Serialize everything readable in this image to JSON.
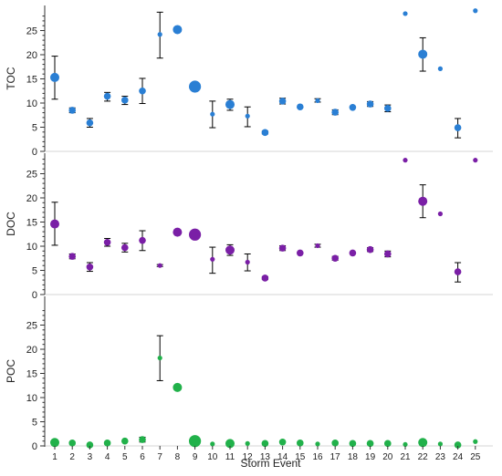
{
  "chart_data": {
    "type": "scatter",
    "xlabel": "Storm Event",
    "x_ticks": [
      1,
      2,
      3,
      4,
      5,
      6,
      7,
      8,
      9,
      10,
      11,
      12,
      13,
      14,
      15,
      16,
      17,
      18,
      19,
      20,
      21,
      22,
      23,
      24,
      25
    ],
    "y_ticks": [
      0,
      5,
      10,
      15,
      20,
      25
    ],
    "colors": {
      "TOC": "#2a7fd4",
      "DOC": "#7a1fa6",
      "POC": "#21b14a",
      "gridline": "#d6d6d6",
      "error_bar": "#000000"
    },
    "panels": [
      {
        "ylabel": "TOC",
        "ylim": [
          0,
          28
        ],
        "points": [
          {
            "x": 1,
            "y": 15.3,
            "err": [
              10.8,
              19.7
            ],
            "size": "medium"
          },
          {
            "x": 2,
            "y": 8.5,
            "err": [
              8.0,
              9.0
            ],
            "size": "small"
          },
          {
            "x": 3,
            "y": 5.9,
            "err": [
              5.0,
              6.8
            ],
            "size": "small"
          },
          {
            "x": 4,
            "y": 11.4,
            "err": [
              10.4,
              12.2
            ],
            "size": "small"
          },
          {
            "x": 5,
            "y": 10.6,
            "err": [
              9.7,
              11.4
            ],
            "size": "small"
          },
          {
            "x": 6,
            "y": 12.5,
            "err": [
              9.9,
              15.1
            ],
            "size": "small"
          },
          {
            "x": 7,
            "y": 24.2,
            "err": [
              19.3,
              28.8
            ],
            "size": "tiny"
          },
          {
            "x": 8,
            "y": 25.2,
            "err": null,
            "size": "medium"
          },
          {
            "x": 9,
            "y": 13.4,
            "err": null,
            "size": "large"
          },
          {
            "x": 10,
            "y": 7.7,
            "err": [
              4.9,
              10.4
            ],
            "size": "tiny"
          },
          {
            "x": 11,
            "y": 9.7,
            "err": [
              8.5,
              10.8
            ],
            "size": "medium"
          },
          {
            "x": 12,
            "y": 7.3,
            "err": [
              5.1,
              9.2
            ],
            "size": "tiny"
          },
          {
            "x": 13,
            "y": 3.9,
            "err": [
              3.6,
              4.2
            ],
            "size": "small"
          },
          {
            "x": 14,
            "y": 10.4,
            "err": [
              9.8,
              11.0
            ],
            "size": "small"
          },
          {
            "x": 15,
            "y": 9.2,
            "err": null,
            "size": "small"
          },
          {
            "x": 16,
            "y": 10.5,
            "err": [
              10.2,
              10.9
            ],
            "size": "tiny"
          },
          {
            "x": 17,
            "y": 8.1,
            "err": [
              7.6,
              8.6
            ],
            "size": "small"
          },
          {
            "x": 18,
            "y": 9.1,
            "err": null,
            "size": "small"
          },
          {
            "x": 19,
            "y": 9.8,
            "err": [
              9.3,
              10.3
            ],
            "size": "small"
          },
          {
            "x": 20,
            "y": 8.9,
            "err": [
              8.2,
              9.6
            ],
            "size": "small"
          },
          {
            "x": 21,
            "y": 28.5,
            "err": null,
            "size": "tiny"
          },
          {
            "x": 22,
            "y": 20.1,
            "err": [
              16.6,
              23.5
            ],
            "size": "medium"
          },
          {
            "x": 23,
            "y": 17.1,
            "err": null,
            "size": "tiny"
          },
          {
            "x": 24,
            "y": 4.9,
            "err": [
              2.8,
              6.8
            ],
            "size": "small"
          },
          {
            "x": 25,
            "y": 29.1,
            "err": null,
            "size": "tiny"
          }
        ]
      },
      {
        "ylabel": "DOC",
        "ylim": [
          0,
          28
        ],
        "points": [
          {
            "x": 1,
            "y": 14.6,
            "err": [
              10.2,
              19.1
            ],
            "size": "medium"
          },
          {
            "x": 2,
            "y": 7.9,
            "err": [
              7.4,
              8.4
            ],
            "size": "small"
          },
          {
            "x": 3,
            "y": 5.7,
            "err": [
              4.8,
              6.6
            ],
            "size": "small"
          },
          {
            "x": 4,
            "y": 10.8,
            "err": [
              10.0,
              11.6
            ],
            "size": "small"
          },
          {
            "x": 5,
            "y": 9.7,
            "err": [
              8.8,
              10.6
            ],
            "size": "small"
          },
          {
            "x": 6,
            "y": 11.2,
            "err": [
              9.1,
              13.2
            ],
            "size": "small"
          },
          {
            "x": 7,
            "y": 6.0,
            "err": [
              5.8,
              6.2
            ],
            "size": "tiny"
          },
          {
            "x": 8,
            "y": 12.9,
            "err": null,
            "size": "medium"
          },
          {
            "x": 9,
            "y": 12.4,
            "err": null,
            "size": "large"
          },
          {
            "x": 10,
            "y": 7.3,
            "err": [
              4.4,
              9.8
            ],
            "size": "tiny"
          },
          {
            "x": 11,
            "y": 9.2,
            "err": [
              8.1,
              10.3
            ],
            "size": "medium"
          },
          {
            "x": 12,
            "y": 6.7,
            "err": [
              4.9,
              8.4
            ],
            "size": "tiny"
          },
          {
            "x": 13,
            "y": 3.4,
            "err": [
              3.1,
              3.7
            ],
            "size": "small"
          },
          {
            "x": 14,
            "y": 9.6,
            "err": [
              9.1,
              10.1
            ],
            "size": "small"
          },
          {
            "x": 15,
            "y": 8.6,
            "err": null,
            "size": "small"
          },
          {
            "x": 16,
            "y": 10.1,
            "err": [
              9.8,
              10.4
            ],
            "size": "tiny"
          },
          {
            "x": 17,
            "y": 7.5,
            "err": [
              7.1,
              7.9
            ],
            "size": "small"
          },
          {
            "x": 18,
            "y": 8.6,
            "err": null,
            "size": "small"
          },
          {
            "x": 19,
            "y": 9.3,
            "err": [
              8.9,
              9.7
            ],
            "size": "small"
          },
          {
            "x": 20,
            "y": 8.4,
            "err": [
              7.8,
              9.0
            ],
            "size": "small"
          },
          {
            "x": 21,
            "y": 27.8,
            "err": null,
            "size": "tiny"
          },
          {
            "x": 22,
            "y": 19.3,
            "err": [
              15.9,
              22.7
            ],
            "size": "medium"
          },
          {
            "x": 23,
            "y": 16.7,
            "err": null,
            "size": "tiny"
          },
          {
            "x": 24,
            "y": 4.7,
            "err": [
              2.6,
              6.6
            ],
            "size": "small"
          },
          {
            "x": 25,
            "y": 27.8,
            "err": null,
            "size": "tiny"
          }
        ]
      },
      {
        "ylabel": "POC",
        "ylim": [
          0,
          28
        ],
        "points": [
          {
            "x": 1,
            "y": 0.7,
            "err": null,
            "size": "medium"
          },
          {
            "x": 2,
            "y": 0.6,
            "err": null,
            "size": "small"
          },
          {
            "x": 3,
            "y": 0.2,
            "err": null,
            "size": "small"
          },
          {
            "x": 4,
            "y": 0.6,
            "err": null,
            "size": "small"
          },
          {
            "x": 5,
            "y": 1.0,
            "err": null,
            "size": "small"
          },
          {
            "x": 6,
            "y": 1.3,
            "err": [
              0.8,
              1.8
            ],
            "size": "small"
          },
          {
            "x": 7,
            "y": 18.2,
            "err": [
              13.5,
              22.8
            ],
            "size": "tiny"
          },
          {
            "x": 8,
            "y": 12.1,
            "err": null,
            "size": "medium"
          },
          {
            "x": 9,
            "y": 1.0,
            "err": null,
            "size": "large"
          },
          {
            "x": 10,
            "y": 0.4,
            "err": null,
            "size": "tiny"
          },
          {
            "x": 11,
            "y": 0.5,
            "err": null,
            "size": "medium"
          },
          {
            "x": 12,
            "y": 0.5,
            "err": null,
            "size": "tiny"
          },
          {
            "x": 13,
            "y": 0.5,
            "err": null,
            "size": "small"
          },
          {
            "x": 14,
            "y": 0.8,
            "err": null,
            "size": "small"
          },
          {
            "x": 15,
            "y": 0.6,
            "err": null,
            "size": "small"
          },
          {
            "x": 16,
            "y": 0.4,
            "err": null,
            "size": "tiny"
          },
          {
            "x": 17,
            "y": 0.6,
            "err": null,
            "size": "small"
          },
          {
            "x": 18,
            "y": 0.5,
            "err": null,
            "size": "small"
          },
          {
            "x": 19,
            "y": 0.5,
            "err": null,
            "size": "small"
          },
          {
            "x": 20,
            "y": 0.5,
            "err": null,
            "size": "small"
          },
          {
            "x": 21,
            "y": 0.3,
            "err": null,
            "size": "tiny"
          },
          {
            "x": 22,
            "y": 0.7,
            "err": null,
            "size": "medium"
          },
          {
            "x": 23,
            "y": 0.4,
            "err": null,
            "size": "tiny"
          },
          {
            "x": 24,
            "y": 0.2,
            "err": null,
            "size": "small"
          },
          {
            "x": 25,
            "y": 0.9,
            "err": null,
            "size": "tiny"
          }
        ]
      }
    ]
  }
}
